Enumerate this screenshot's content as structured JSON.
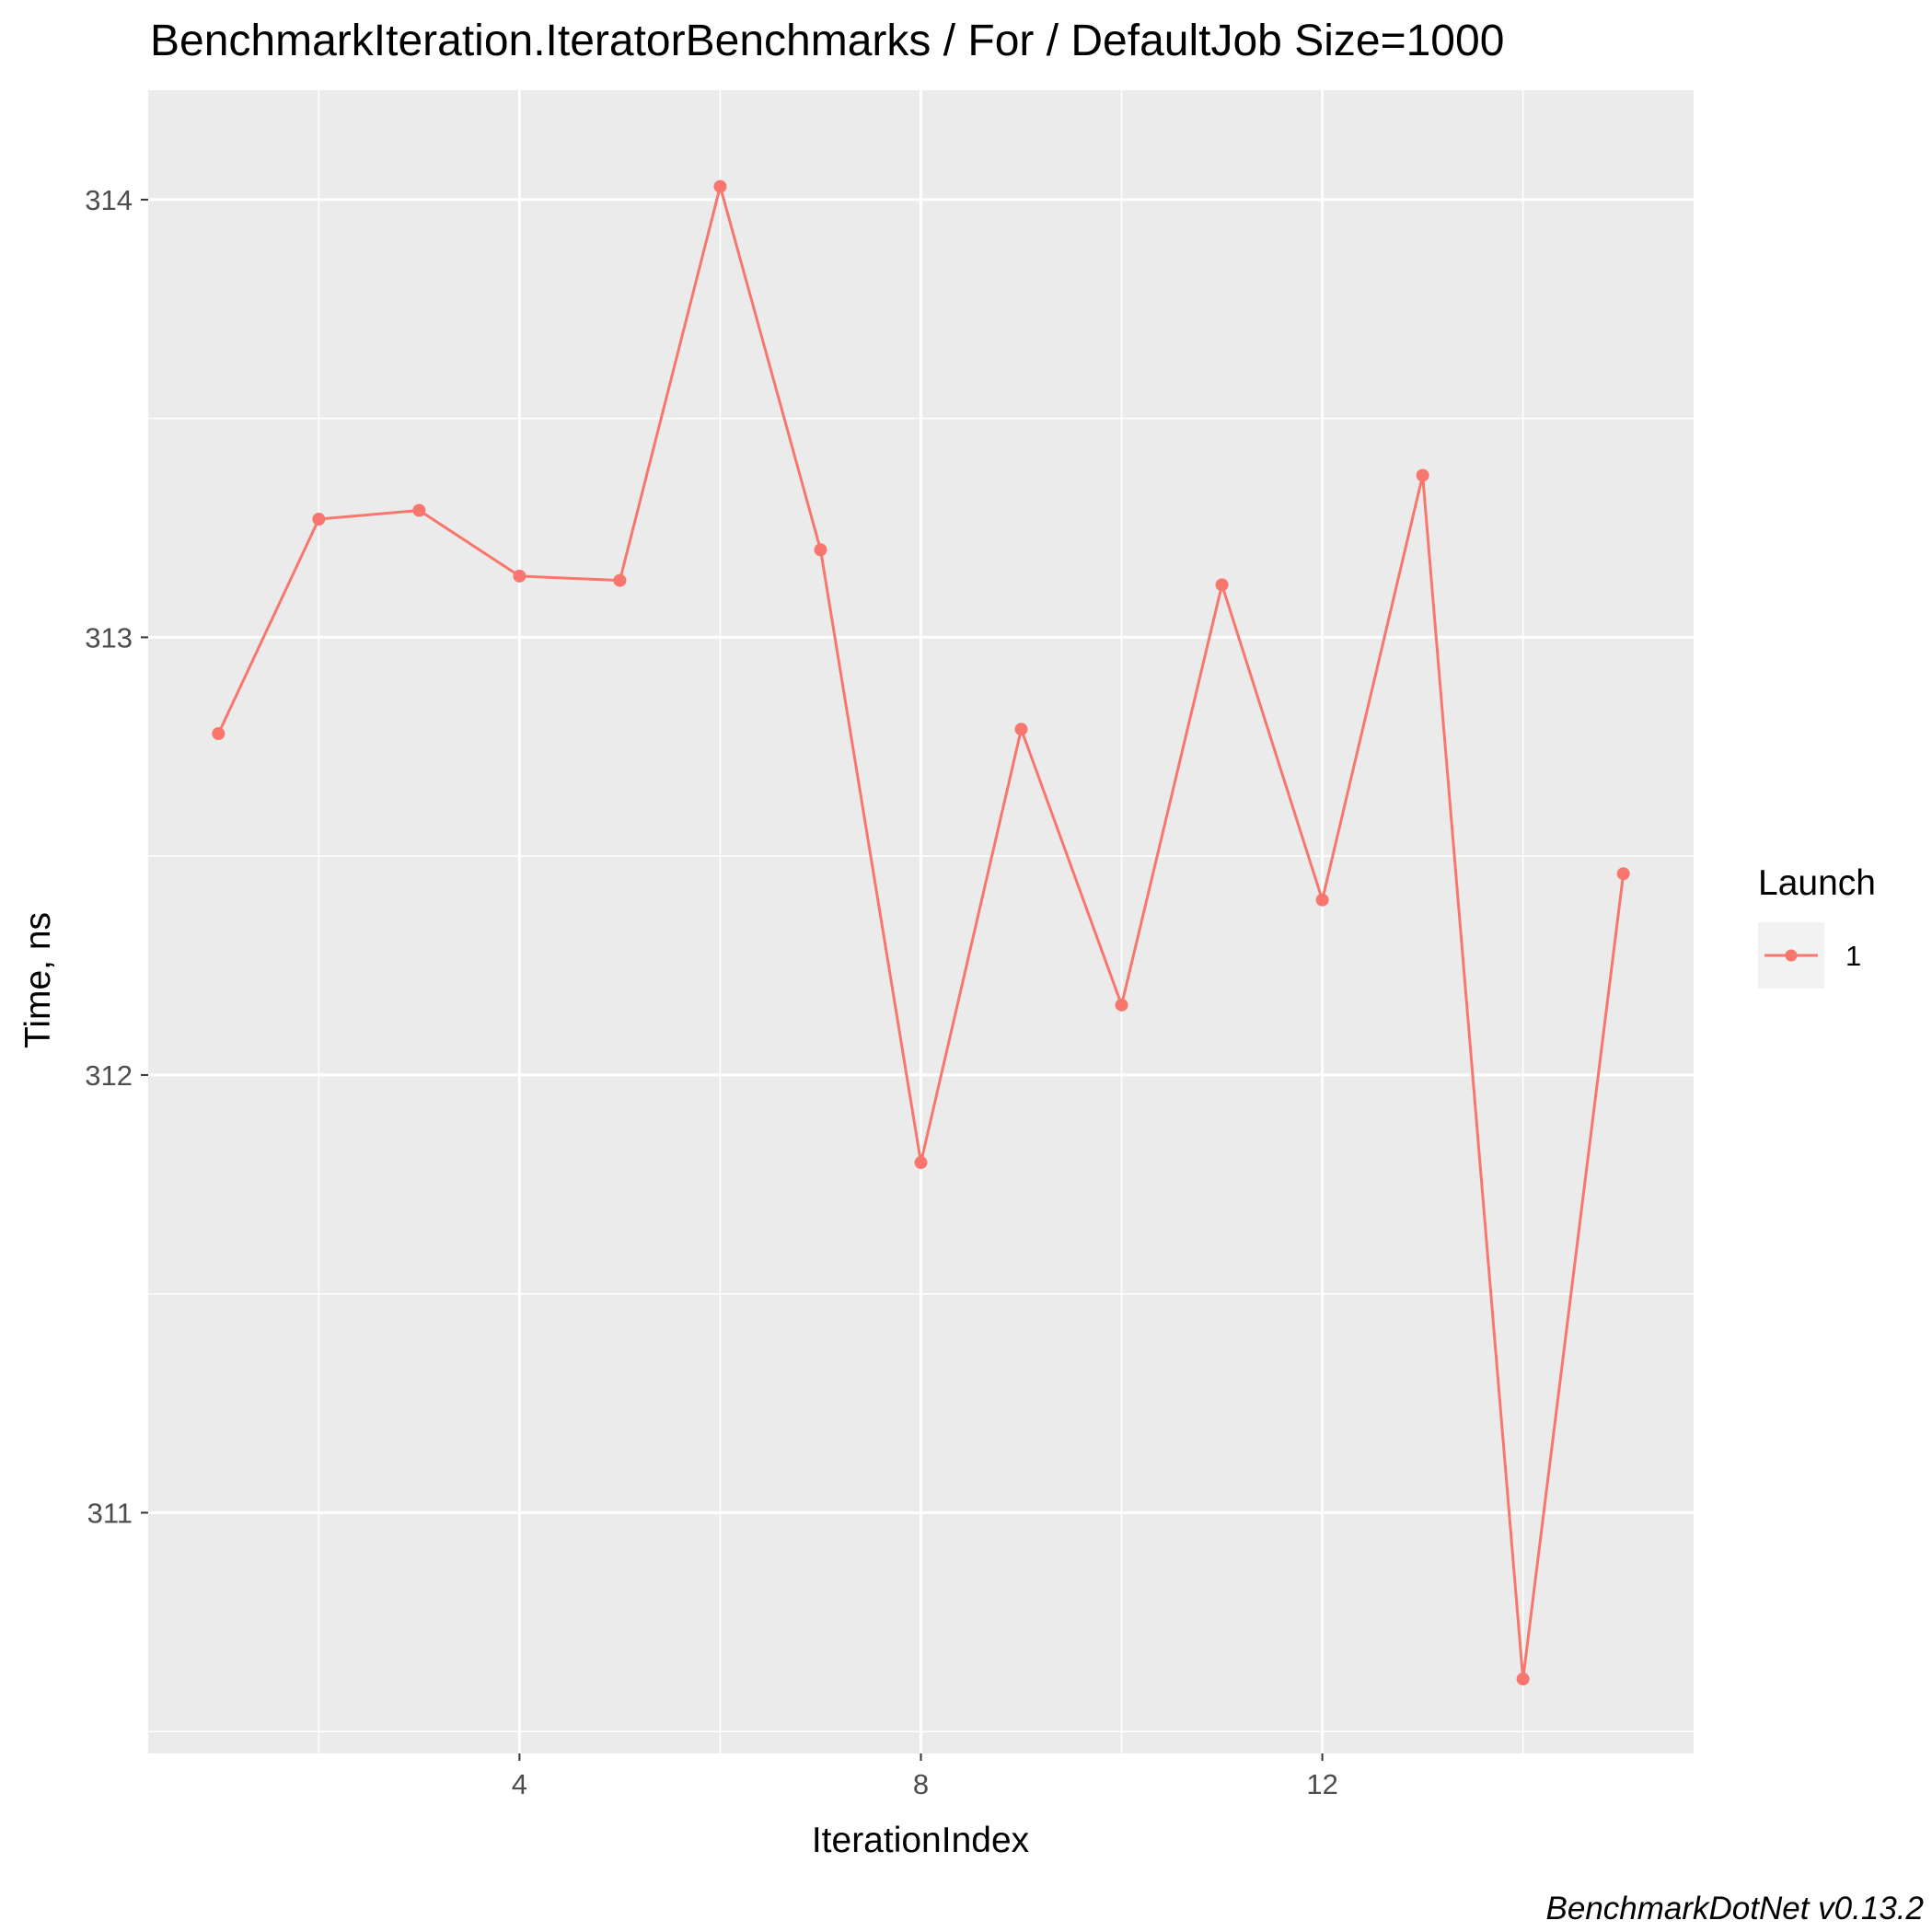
{
  "chart_data": {
    "type": "line",
    "title": "BenchmarkIteration.IteratorBenchmarks / For / DefaultJob Size=1000",
    "xlabel": "IterationIndex",
    "ylabel": "Time, ns",
    "caption": "BenchmarkDotNet v0.13.2",
    "xlim": [
      0.3,
      15.7
    ],
    "ylim": [
      310.45,
      314.25
    ],
    "x_ticks": [
      4,
      8,
      12
    ],
    "x_tick_labels": [
      "4",
      "8",
      "12"
    ],
    "x_minor_ticks": [
      2,
      6,
      10,
      14
    ],
    "y_ticks": [
      311,
      312,
      313,
      314
    ],
    "y_tick_labels": [
      "311",
      "312",
      "313",
      "314"
    ],
    "y_minor_ticks": [
      310.5,
      311.5,
      312.5,
      313.5
    ],
    "grid": true,
    "legend": {
      "title": "Launch",
      "position": "right"
    },
    "series": [
      {
        "name": "1",
        "color": "#F8766D",
        "x": [
          1,
          2,
          3,
          4,
          5,
          6,
          7,
          8,
          9,
          10,
          11,
          12,
          13,
          14,
          15
        ],
        "y": [
          312.78,
          313.27,
          313.29,
          313.14,
          313.13,
          314.03,
          313.2,
          311.8,
          312.79,
          312.16,
          313.12,
          312.4,
          313.37,
          310.62,
          312.46
        ]
      }
    ]
  }
}
